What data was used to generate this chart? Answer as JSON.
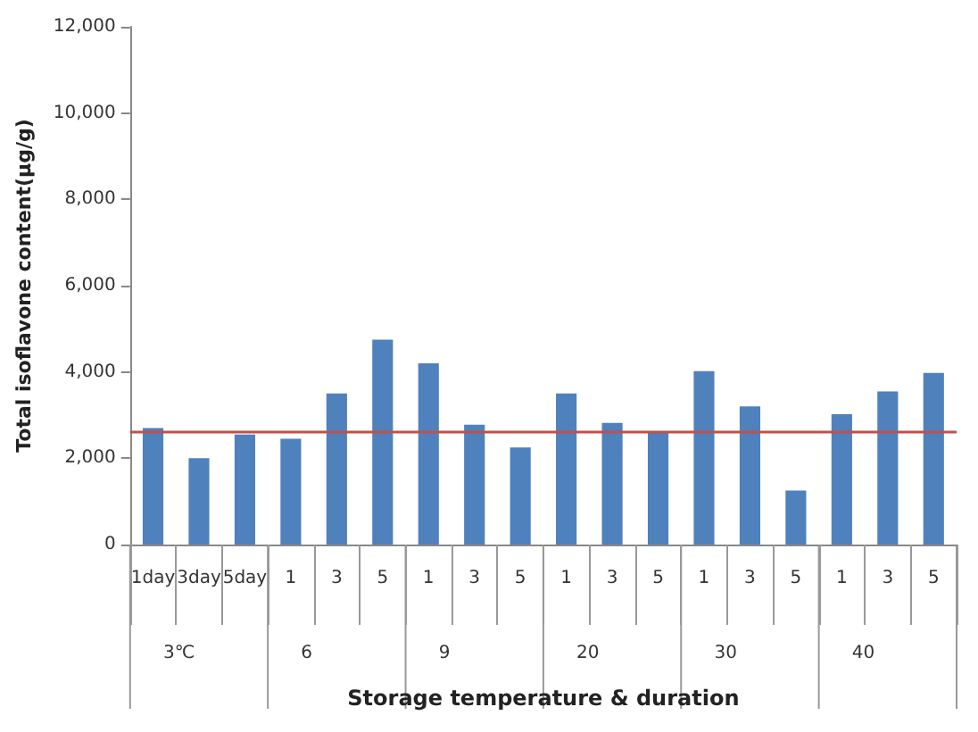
{
  "chart_data": {
    "type": "bar",
    "xlabel": "Storage temperature & duration",
    "ylabel": "Total isoflavone content(μg/g)",
    "categories": [
      "1day",
      "3day",
      "5day",
      "1",
      "3",
      "5",
      "1",
      "3",
      "5",
      "1",
      "3",
      "5",
      "1",
      "3",
      "5",
      "1",
      "3",
      "5"
    ],
    "values": [
      2700,
      2000,
      2550,
      2450,
      3500,
      4750,
      4200,
      2780,
      2250,
      3500,
      2820,
      2630,
      4020,
      3200,
      1250,
      3020,
      3550,
      3980
    ],
    "color": "#4f81bd",
    "ylim": [
      0,
      12000
    ],
    "yticks": [
      0,
      {
        "value": 2000,
        "label": "2,000"
      },
      {
        "value": 4000,
        "label": "4,000"
      },
      {
        "value": 6000,
        "label": "6,000"
      },
      {
        "value": 8000,
        "label": "8,000"
      },
      {
        "value": 10000,
        "label": "10,000"
      },
      {
        "value": 12000,
        "label": "12,000"
      }
    ],
    "grid": false,
    "annotations": [
      "3℃",
      "6",
      "9",
      "20",
      "30",
      "40"
    ],
    "ref_lines": [
      {
        "axis": "y",
        "value": 2600,
        "color": "#c0504d"
      }
    ]
  }
}
